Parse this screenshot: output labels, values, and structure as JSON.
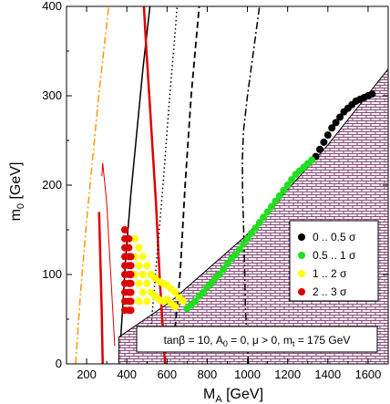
{
  "chart_data": {
    "type": "scatter",
    "xlabel": "M",
    "xlabel_sub": "A",
    "xlabel_unit": " [GeV]",
    "ylabel": "m",
    "ylabel_sub": "0",
    "ylabel_unit": " [GeV]",
    "xlim": [
      100,
      1700
    ],
    "ylim": [
      0,
      400
    ],
    "xticks": [
      200,
      400,
      600,
      800,
      1000,
      1200,
      1400,
      1600
    ],
    "yticks": [
      0,
      100,
      200,
      300,
      400
    ],
    "grid": false,
    "legend_position": "right",
    "annotation": "tanβ = 10, A₀ = 0, μ > 0, m_t = 175 GeV",
    "series": [
      {
        "name": "0 .. 0.5 σ",
        "color": "#000000",
        "points": [
          [
            1340,
            232
          ],
          [
            1360,
            240
          ],
          [
            1380,
            248
          ],
          [
            1400,
            256
          ],
          [
            1420,
            264
          ],
          [
            1440,
            270
          ],
          [
            1460,
            276
          ],
          [
            1480,
            282
          ],
          [
            1500,
            286
          ],
          [
            1520,
            290
          ],
          [
            1540,
            294
          ],
          [
            1560,
            296
          ],
          [
            1580,
            298
          ],
          [
            1600,
            300
          ],
          [
            1620,
            302
          ]
        ]
      },
      {
        "name": "0.5 .. 1 σ",
        "color": "#22dd22",
        "points": [
          [
            700,
            62
          ],
          [
            720,
            66
          ],
          [
            740,
            70
          ],
          [
            760,
            76
          ],
          [
            780,
            80
          ],
          [
            800,
            86
          ],
          [
            820,
            90
          ],
          [
            840,
            96
          ],
          [
            860,
            100
          ],
          [
            880,
            106
          ],
          [
            900,
            112
          ],
          [
            920,
            118
          ],
          [
            940,
            122
          ],
          [
            960,
            128
          ],
          [
            980,
            134
          ],
          [
            1000,
            140
          ],
          [
            1020,
            146
          ],
          [
            1040,
            152
          ],
          [
            1060,
            158
          ],
          [
            1080,
            164
          ],
          [
            1100,
            170
          ],
          [
            1120,
            176
          ],
          [
            1140,
            182
          ],
          [
            1160,
            188
          ],
          [
            1180,
            194
          ],
          [
            1200,
            200
          ],
          [
            1220,
            206
          ],
          [
            1240,
            212
          ],
          [
            1260,
            216
          ],
          [
            1280,
            220
          ],
          [
            1300,
            224
          ],
          [
            1320,
            228
          ]
        ]
      },
      {
        "name": "1 .. 2 σ",
        "color": "#ffff00",
        "points": [
          [
            440,
            140
          ],
          [
            440,
            120
          ],
          [
            440,
            100
          ],
          [
            460,
            130
          ],
          [
            460,
            110
          ],
          [
            460,
            90
          ],
          [
            460,
            70
          ],
          [
            480,
            120
          ],
          [
            480,
            100
          ],
          [
            480,
            80
          ],
          [
            500,
            110
          ],
          [
            500,
            90
          ],
          [
            500,
            70
          ],
          [
            520,
            100
          ],
          [
            520,
            80
          ],
          [
            540,
            96
          ],
          [
            540,
            76
          ],
          [
            560,
            92
          ],
          [
            560,
            72
          ],
          [
            580,
            90
          ],
          [
            580,
            70
          ],
          [
            600,
            88
          ],
          [
            600,
            72
          ],
          [
            620,
            84
          ],
          [
            620,
            68
          ],
          [
            640,
            80
          ],
          [
            640,
            64
          ],
          [
            660,
            74
          ],
          [
            680,
            70
          ]
        ]
      },
      {
        "name": "2 .. 3 σ",
        "color": "#dd0000",
        "points": [
          [
            390,
            150
          ],
          [
            390,
            140
          ],
          [
            390,
            130
          ],
          [
            390,
            120
          ],
          [
            390,
            110
          ],
          [
            390,
            100
          ],
          [
            390,
            90
          ],
          [
            390,
            80
          ],
          [
            390,
            70
          ],
          [
            390,
            60
          ],
          [
            410,
            140
          ],
          [
            410,
            130
          ],
          [
            410,
            120
          ],
          [
            410,
            110
          ],
          [
            410,
            100
          ],
          [
            410,
            90
          ],
          [
            410,
            80
          ],
          [
            410,
            70
          ],
          [
            410,
            60
          ],
          [
            420,
            120
          ],
          [
            420,
            110
          ],
          [
            420,
            100
          ],
          [
            420,
            90
          ],
          [
            420,
            80
          ],
          [
            420,
            70
          ],
          [
            420,
            60
          ]
        ]
      }
    ],
    "curves": [
      {
        "id": "orange-dashdot",
        "color": "#ff9900",
        "style": "dashdot",
        "width": 1.5,
        "points": [
          [
            145,
            0
          ],
          [
            170,
            80
          ],
          [
            200,
            160
          ],
          [
            230,
            230
          ],
          [
            260,
            300
          ],
          [
            290,
            360
          ],
          [
            310,
            400
          ]
        ]
      },
      {
        "id": "red-thick-left",
        "color": "#dd0000",
        "style": "solid",
        "width": 2.5,
        "points": [
          [
            280,
            0
          ],
          [
            275,
            60
          ],
          [
            268,
            120
          ],
          [
            262,
            170
          ]
        ]
      },
      {
        "id": "red-thin",
        "color": "#dd0000",
        "style": "solid",
        "width": 1,
        "points": [
          [
            340,
            20
          ],
          [
            320,
            100
          ],
          [
            300,
            180
          ],
          [
            280,
            225
          ],
          [
            276,
            210
          ]
        ]
      },
      {
        "id": "black-solid",
        "color": "#000000",
        "style": "solid",
        "width": 1.5,
        "points": [
          [
            370,
            30
          ],
          [
            395,
            120
          ],
          [
            420,
            190
          ],
          [
            450,
            260
          ],
          [
            480,
            330
          ],
          [
            515,
            400
          ]
        ]
      },
      {
        "id": "red-thick-right",
        "color": "#dd0000",
        "style": "solid",
        "width": 2.5,
        "points": [
          [
            590,
            0
          ],
          [
            565,
            90
          ],
          [
            545,
            180
          ],
          [
            520,
            270
          ],
          [
            495,
            360
          ],
          [
            485,
            400
          ]
        ]
      },
      {
        "id": "black-dotted",
        "color": "#000000",
        "style": "dotted",
        "width": 1.5,
        "points": [
          [
            520,
            40
          ],
          [
            550,
            120
          ],
          [
            580,
            200
          ],
          [
            610,
            290
          ],
          [
            640,
            370
          ],
          [
            650,
            400
          ]
        ]
      },
      {
        "id": "black-dashed",
        "color": "#000000",
        "style": "dashed",
        "width": 1.8,
        "points": [
          [
            640,
            40
          ],
          [
            665,
            100
          ],
          [
            690,
            200
          ],
          [
            720,
            300
          ],
          [
            760,
            400
          ]
        ]
      },
      {
        "id": "black-dashdot",
        "color": "#000000",
        "style": "dashdot",
        "width": 1.5,
        "points": [
          [
            1005,
            0
          ],
          [
            990,
            60
          ],
          [
            985,
            120
          ],
          [
            980,
            160
          ],
          [
            975,
            200
          ],
          [
            975,
            230
          ],
          [
            980,
            260
          ],
          [
            1000,
            300
          ],
          [
            1030,
            350
          ],
          [
            1060,
            400
          ]
        ]
      }
    ],
    "excluded_region": {
      "boundary": [
        [
          360,
          30
        ],
        [
          620,
          70
        ],
        [
          1000,
          145
        ],
        [
          1400,
          245
        ],
        [
          1700,
          330
        ]
      ]
    }
  }
}
